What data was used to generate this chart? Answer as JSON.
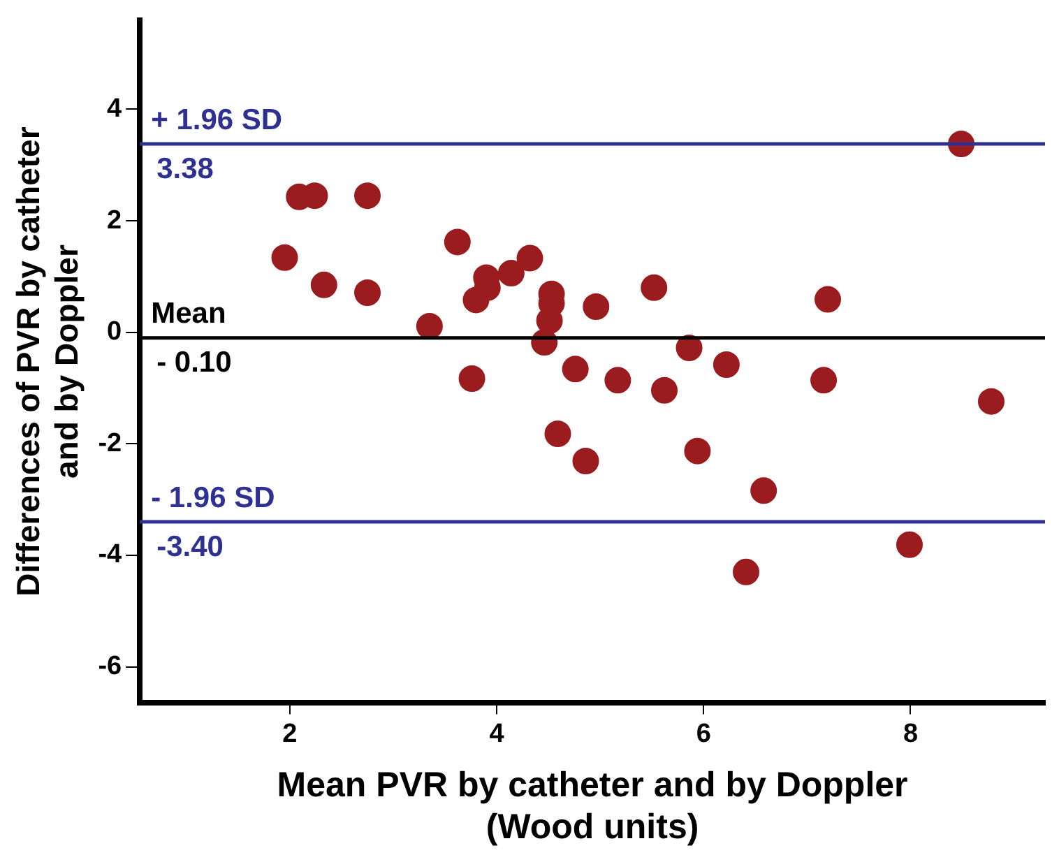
{
  "chart_data": {
    "type": "scatter",
    "xlabel": "Mean PVR by catheter and by Doppler\n(Wood units)",
    "ylabel": "Differences of PVR by catheter\nand by Doppler",
    "x": [
      1.95,
      2.09,
      2.24,
      2.75,
      2.33,
      2.75,
      3.62,
      3.35,
      3.8,
      3.9,
      3.91,
      4.14,
      4.32,
      4.53,
      4.53,
      4.51,
      4.46,
      4.96,
      3.76,
      4.76,
      5.17,
      5.52,
      7.2,
      8.49,
      5.86,
      6.22,
      5.62,
      7.16,
      8.78,
      4.86,
      5.94,
      6.58,
      6.41,
      7.99,
      4.59
    ],
    "series": [
      {
        "color": "#9b1c1f",
        "values": [
          1.34,
          2.43,
          2.45,
          2.45,
          0.85,
          0.71,
          1.62,
          0.11,
          0.58,
          0.98,
          0.8,
          1.06,
          1.33,
          0.69,
          0.52,
          0.21,
          -0.18,
          0.46,
          -0.83,
          -0.66,
          -0.86,
          0.8,
          0.59,
          3.38,
          -0.28,
          -0.58,
          -1.04,
          -0.86,
          -1.24,
          -2.31,
          -2.13,
          -2.84,
          -4.3,
          -3.81,
          -1.82
        ]
      }
    ],
    "marker": "circle",
    "xlim": [
      0.55,
      9.3
    ],
    "xticks": [
      2,
      4,
      6,
      8
    ],
    "ylim": [
      -6.65,
      5.6
    ],
    "yticks": [
      -6,
      -4,
      -2,
      0,
      2,
      4
    ],
    "grid": false,
    "legend": false,
    "ref_lines": [
      {
        "axis": "y",
        "value": 3.38,
        "label": "+ 1.96 SD",
        "color": "#2e3192"
      },
      {
        "axis": "y",
        "value": -0.1,
        "label": "Mean",
        "color": "#000000"
      },
      {
        "axis": "y",
        "value": -3.4,
        "label": "- 1.96 SD",
        "color": "#2e3192"
      }
    ],
    "annotations": [
      {
        "text": "3.38",
        "y": 3.38
      },
      {
        "text": "- 0.10",
        "y": -0.1
      },
      {
        "text": "-3.40",
        "y": -3.4
      }
    ]
  }
}
